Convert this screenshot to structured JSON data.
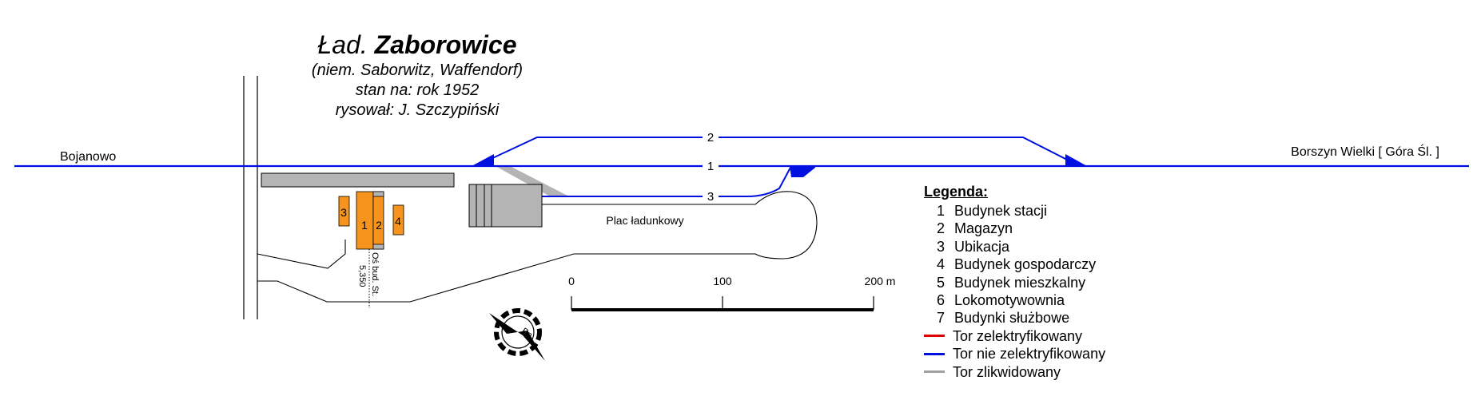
{
  "header": {
    "title_prefix": "Ład.",
    "title_name": "Zaborowice",
    "subtitle_lines": [
      "(niem. Saborwitz, Waffendorf)",
      "stan na: rok 1952",
      "rysował: J. Szczypiński"
    ]
  },
  "directions": {
    "west": "Bojanowo",
    "east": "Borszyn Wielki [ Góra Śl. ]"
  },
  "tracks": [
    {
      "label": "1"
    },
    {
      "label": "2"
    },
    {
      "label": "3"
    }
  ],
  "buildings": [
    {
      "label": "1"
    },
    {
      "label": "2"
    },
    {
      "label": "3"
    },
    {
      "label": "4"
    }
  ],
  "annotations": {
    "loading_area": "Plac ładunkowy",
    "axis_line1": "Oś bud. St.",
    "axis_line2": "5,350",
    "compass": "Pn"
  },
  "scale_bar": {
    "ticks": [
      "0",
      "100",
      "200 m"
    ]
  },
  "legend": {
    "title": "Legenda:",
    "numbered": [
      {
        "num": "1",
        "label": "Budynek stacji"
      },
      {
        "num": "2",
        "label": "Magazyn"
      },
      {
        "num": "3",
        "label": "Ubikacja"
      },
      {
        "num": "4",
        "label": "Budynek gospodarczy"
      },
      {
        "num": "5",
        "label": "Budynek mieszkalny"
      },
      {
        "num": "6",
        "label": "Lokomotywownia"
      },
      {
        "num": "7",
        "label": "Budynki służbowe"
      }
    ],
    "lines": [
      {
        "color": "#e00000",
        "label": "Tor zelektryfikowany"
      },
      {
        "color": "#0010e0",
        "label": "Tor nie zelektryfikowany"
      },
      {
        "color": "#a0a0a0",
        "label": "Tor zlikwidowany"
      }
    ]
  },
  "colors": {
    "track": "#0010e0",
    "dismantled": "#a0a0a0",
    "building": "#f7941d",
    "platform": "#b4b4b4"
  }
}
